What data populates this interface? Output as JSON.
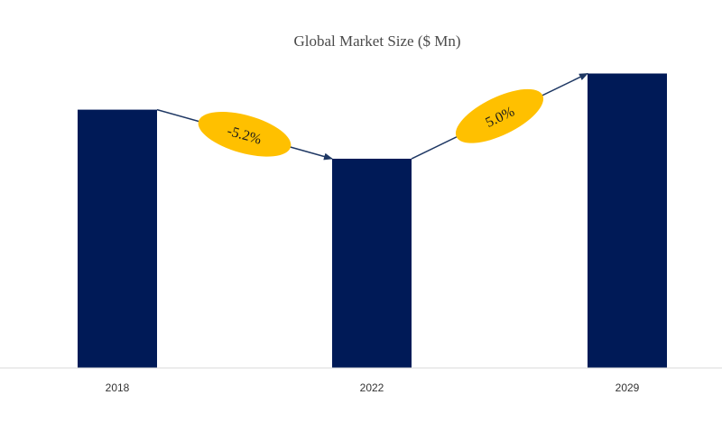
{
  "chart_data": {
    "type": "bar",
    "title": "Global Market Size ($ Mn)",
    "categories": [
      "2018",
      "2022",
      "2029"
    ],
    "values": [
      100,
      81,
      114
    ],
    "ylim": [
      0,
      125
    ],
    "xlabel": "",
    "ylabel": "",
    "grid": false,
    "legend": "none",
    "annotations": [
      {
        "from": "2018",
        "to": "2022",
        "label": "-5.2%"
      },
      {
        "from": "2022",
        "to": "2029",
        "label": "5.0%"
      }
    ]
  },
  "colors": {
    "bar": "#001a57",
    "badge": "#ffc000",
    "axis": "#d9d9d9",
    "arrow": "#1f3864"
  }
}
